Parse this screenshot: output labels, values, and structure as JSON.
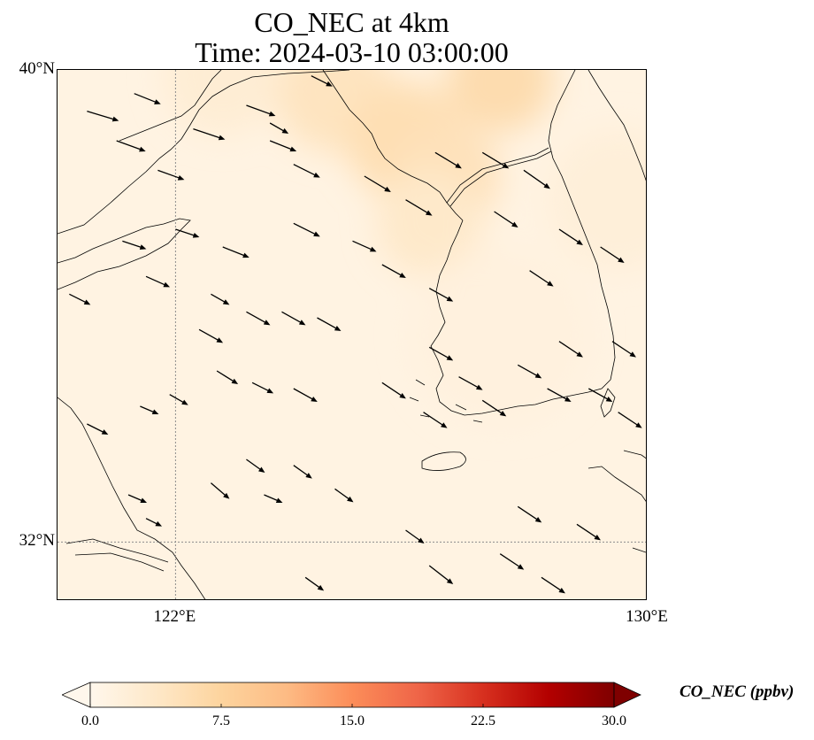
{
  "figure": {
    "title_line1": "CO_NEC at 4km",
    "title_line2": "Time: 2024-03-10 03:00:00"
  },
  "map": {
    "lat_range": [
      31,
      40
    ],
    "lon_range": [
      120,
      130
    ],
    "gridline_color": "#8c8c8c",
    "coastline_color": "#000000",
    "lat_labels": [
      {
        "value": 40,
        "text": "40°N"
      },
      {
        "value": 32,
        "text": "32°N"
      }
    ],
    "lon_labels": [
      {
        "value": 122,
        "text": "122°E"
      },
      {
        "value": 130,
        "text": "130°E"
      }
    ],
    "gridlines": {
      "lats": [
        32
      ],
      "lons": [
        122
      ]
    },
    "field": {
      "name": "CO_NEC",
      "units": "ppbv",
      "background_value": 1.0,
      "blobs": [
        {
          "lon": 127.5,
          "lat": 39.85,
          "value": 6.0,
          "radius_deg": 0.9
        },
        {
          "lon": 124.7,
          "lat": 39.6,
          "value": 4.5,
          "radius_deg": 1.0
        },
        {
          "lon": 125.9,
          "lat": 38.8,
          "value": 5.5,
          "radius_deg": 1.0
        },
        {
          "lon": 126.6,
          "lat": 38.2,
          "value": 5.0,
          "radius_deg": 0.9
        },
        {
          "lon": 126.3,
          "lat": 37.4,
          "value": 3.5,
          "radius_deg": 0.9
        },
        {
          "lon": 129.5,
          "lat": 37.8,
          "value": 2.0,
          "radius_deg": 1.2
        },
        {
          "lon": 122.8,
          "lat": 39.9,
          "value": 2.5,
          "radius_deg": 1.0
        },
        {
          "lon": 127.5,
          "lat": 35.5,
          "value": 1.5,
          "radius_deg": 1.5
        }
      ]
    },
    "wind_arrows": [
      [
        120.5,
        39.3,
        0.6,
        -0.18
      ],
      [
        121.0,
        38.8,
        0.55,
        -0.2
      ],
      [
        121.7,
        38.3,
        0.5,
        -0.18
      ],
      [
        121.3,
        39.6,
        0.5,
        -0.2
      ],
      [
        122.3,
        39.0,
        0.6,
        -0.2
      ],
      [
        123.2,
        39.4,
        0.55,
        -0.2
      ],
      [
        123.6,
        38.8,
        0.5,
        -0.2
      ],
      [
        124.0,
        38.4,
        0.5,
        -0.25
      ],
      [
        122.0,
        37.3,
        0.45,
        -0.15
      ],
      [
        122.8,
        37.0,
        0.5,
        -0.2
      ],
      [
        121.1,
        37.1,
        0.45,
        -0.15
      ],
      [
        121.5,
        36.5,
        0.45,
        -0.2
      ],
      [
        124.0,
        37.4,
        0.5,
        -0.25
      ],
      [
        125.0,
        37.1,
        0.45,
        -0.2
      ],
      [
        125.5,
        36.7,
        0.45,
        -0.25
      ],
      [
        126.3,
        36.3,
        0.45,
        -0.25
      ],
      [
        125.2,
        38.2,
        0.5,
        -0.3
      ],
      [
        125.9,
        37.8,
        0.5,
        -0.3
      ],
      [
        126.4,
        38.6,
        0.5,
        -0.3
      ],
      [
        127.2,
        38.6,
        0.5,
        -0.3
      ],
      [
        127.4,
        37.6,
        0.45,
        -0.3
      ],
      [
        127.9,
        38.3,
        0.5,
        -0.35
      ],
      [
        128.5,
        37.3,
        0.45,
        -0.3
      ],
      [
        129.2,
        37.0,
        0.45,
        -0.3
      ],
      [
        128.0,
        36.6,
        0.45,
        -0.3
      ],
      [
        129.4,
        35.4,
        0.45,
        -0.3
      ],
      [
        128.5,
        35.4,
        0.45,
        -0.3
      ],
      [
        127.8,
        35.0,
        0.45,
        -0.25
      ],
      [
        126.3,
        35.3,
        0.45,
        -0.25
      ],
      [
        126.8,
        34.8,
        0.45,
        -0.25
      ],
      [
        125.5,
        34.7,
        0.45,
        -0.3
      ],
      [
        126.2,
        34.2,
        0.45,
        -0.3
      ],
      [
        127.2,
        34.4,
        0.45,
        -0.3
      ],
      [
        128.3,
        34.6,
        0.45,
        -0.25
      ],
      [
        129.0,
        34.6,
        0.45,
        -0.25
      ],
      [
        129.5,
        34.2,
        0.45,
        -0.3
      ],
      [
        122.4,
        35.6,
        0.45,
        -0.25
      ],
      [
        123.2,
        35.9,
        0.45,
        -0.25
      ],
      [
        123.8,
        35.9,
        0.45,
        -0.25
      ],
      [
        124.4,
        35.8,
        0.45,
        -0.25
      ],
      [
        122.7,
        34.9,
        0.4,
        -0.25
      ],
      [
        123.3,
        34.7,
        0.4,
        -0.2
      ],
      [
        124.0,
        34.6,
        0.45,
        -0.25
      ],
      [
        121.4,
        34.3,
        0.35,
        -0.15
      ],
      [
        121.9,
        34.5,
        0.35,
        -0.2
      ],
      [
        124.0,
        33.3,
        0.35,
        -0.25
      ],
      [
        122.6,
        33.0,
        0.35,
        -0.3
      ],
      [
        121.2,
        32.8,
        0.35,
        -0.15
      ],
      [
        121.5,
        32.4,
        0.3,
        -0.15
      ],
      [
        123.2,
        33.4,
        0.35,
        -0.25
      ],
      [
        124.7,
        32.9,
        0.35,
        -0.25
      ],
      [
        125.9,
        32.2,
        0.35,
        -0.25
      ],
      [
        124.2,
        31.4,
        0.35,
        -0.25
      ],
      [
        126.3,
        31.6,
        0.45,
        -0.35
      ],
      [
        127.5,
        31.8,
        0.45,
        -0.3
      ],
      [
        128.2,
        31.4,
        0.45,
        -0.3
      ],
      [
        127.8,
        32.6,
        0.45,
        -0.3
      ],
      [
        128.8,
        32.3,
        0.45,
        -0.3
      ],
      [
        120.5,
        34.0,
        0.4,
        -0.2
      ],
      [
        120.2,
        36.2,
        0.4,
        -0.2
      ],
      [
        124.3,
        39.9,
        0.4,
        -0.2
      ],
      [
        123.6,
        39.1,
        0.35,
        -0.2
      ],
      [
        122.6,
        36.2,
        0.35,
        -0.2
      ],
      [
        123.5,
        32.8,
        0.35,
        -0.15
      ]
    ]
  },
  "colorbar": {
    "label": "CO_NEC (ppbv)",
    "vmin": 0,
    "vmax": 30,
    "ticks": [
      "0.0",
      "7.5",
      "15.0",
      "22.5",
      "30.0"
    ],
    "extend": "both",
    "colormap": [
      "#fff7ec",
      "#fee8c8",
      "#fdd49e",
      "#fdbb84",
      "#fc8d59",
      "#ef6548",
      "#d7301f",
      "#b30000",
      "#7f0000"
    ]
  }
}
